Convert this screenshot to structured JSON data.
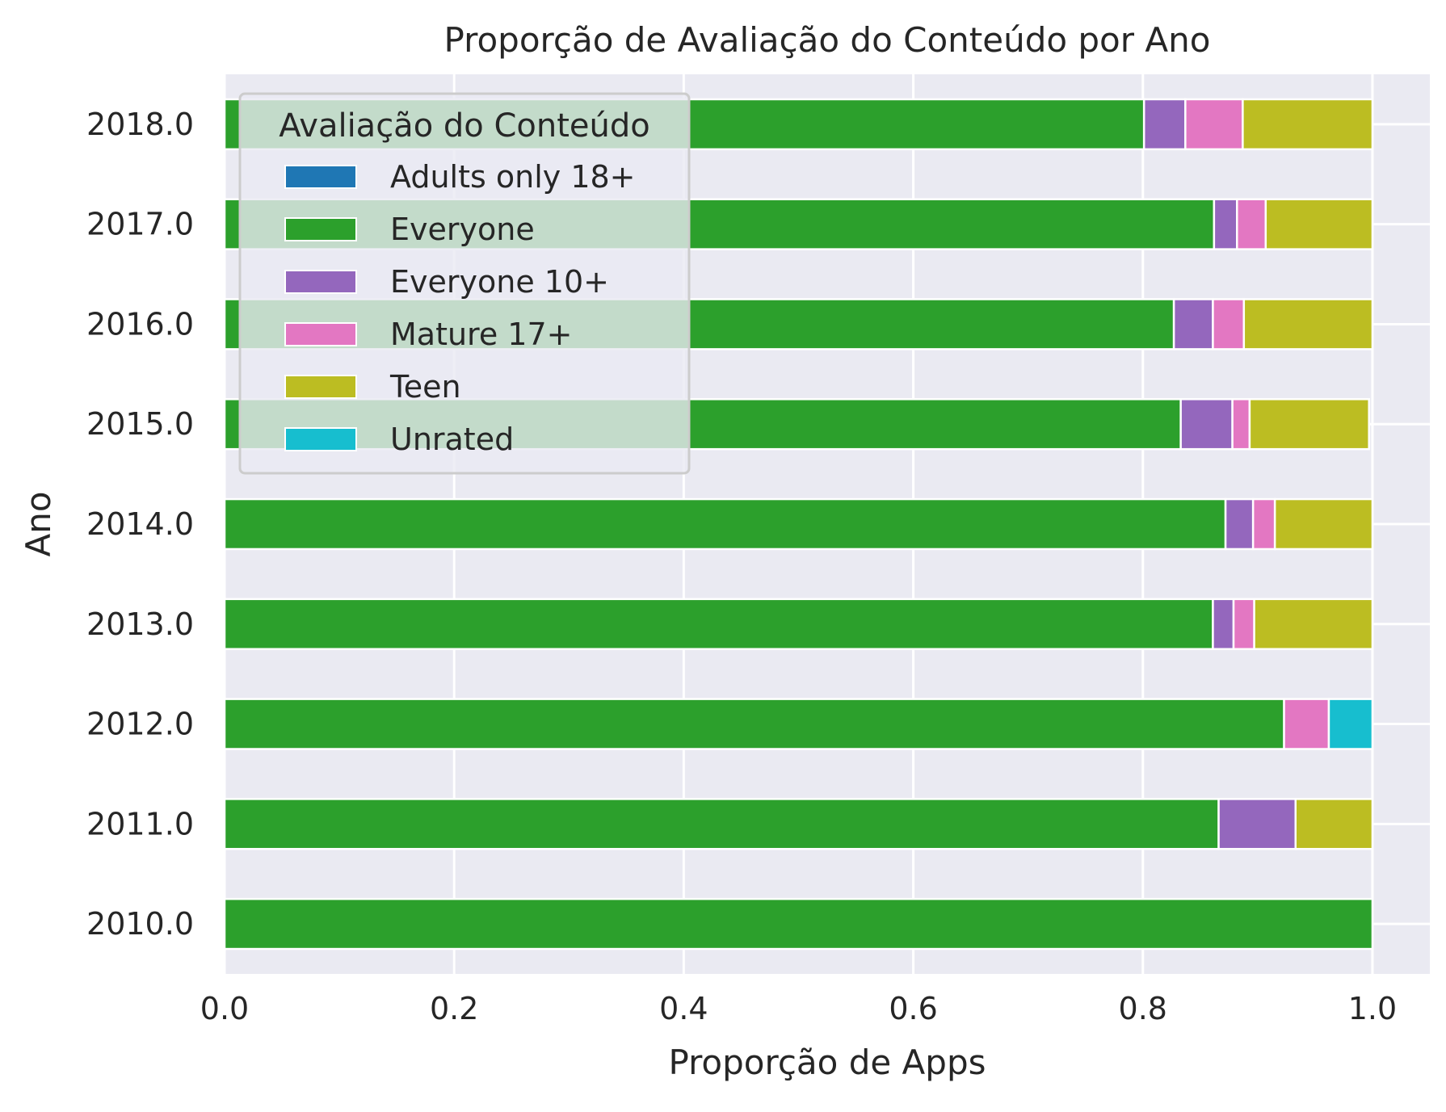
{
  "chart_data": {
    "type": "bar",
    "orientation": "horizontal",
    "stacked": true,
    "title": "Proporção de Avaliação do Conteúdo por Ano",
    "xlabel": "Proporção de Apps",
    "ylabel": "Ano",
    "xlim": [
      0.0,
      1.05
    ],
    "xticks": [
      "0.0",
      "0.2",
      "0.4",
      "0.6",
      "0.8",
      "1.0"
    ],
    "xtick_values": [
      0.0,
      0.2,
      0.4,
      0.6,
      0.8,
      1.0
    ],
    "categories": [
      "2010.0",
      "2011.0",
      "2012.0",
      "2013.0",
      "2014.0",
      "2015.0",
      "2016.0",
      "2017.0",
      "2018.0"
    ],
    "grid": true,
    "background": "#eaeaf2",
    "legend": {
      "title": "Avaliação do Conteúdo",
      "placement": "upper-left"
    },
    "series": [
      {
        "name": "Adults only 18+",
        "color": "#1f77b4",
        "values": [
          0,
          0,
          0,
          0,
          0,
          0,
          0,
          0,
          0
        ]
      },
      {
        "name": "Everyone",
        "color": "#2ca02c",
        "values": [
          1.0,
          0.866,
          0.923,
          0.861,
          0.872,
          0.833,
          0.827,
          0.862,
          0.801
        ]
      },
      {
        "name": "Everyone 10+",
        "color": "#9467bd",
        "values": [
          0,
          0.067,
          0,
          0.018,
          0.024,
          0.045,
          0.034,
          0.02,
          0.036
        ]
      },
      {
        "name": "Mature 17+",
        "color": "#e377c2",
        "values": [
          0,
          0,
          0.039,
          0.018,
          0.019,
          0.015,
          0.027,
          0.025,
          0.05
        ]
      },
      {
        "name": "Teen",
        "color": "#bcbd22",
        "values": [
          0,
          0.067,
          0,
          0.103,
          0.085,
          0.104,
          0.112,
          0.093,
          0.113
        ]
      },
      {
        "name": "Unrated",
        "color": "#17becf",
        "values": [
          0,
          0,
          0.038,
          0,
          0,
          0,
          0,
          0,
          0
        ]
      }
    ]
  }
}
